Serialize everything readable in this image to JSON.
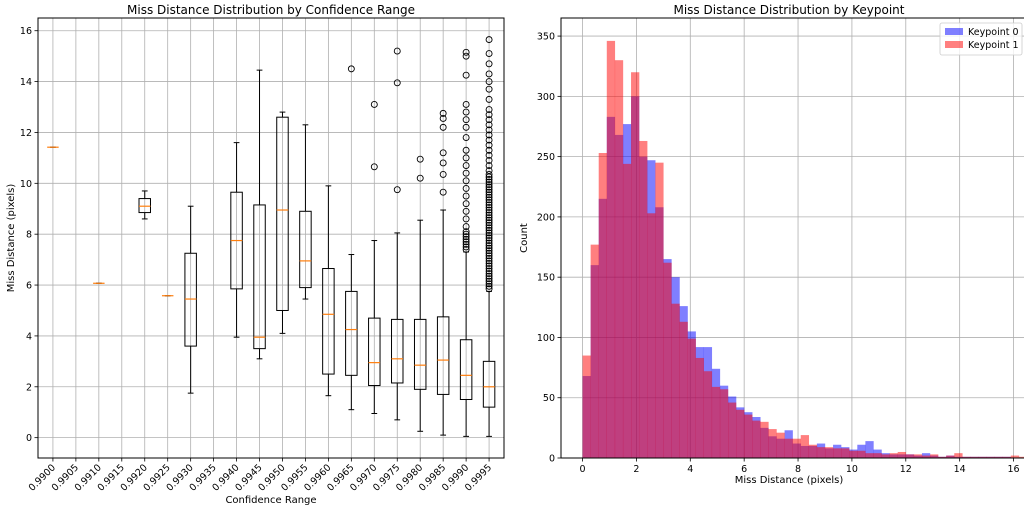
{
  "chart_data": [
    {
      "type": "box",
      "title": "Miss Distance Distribution by Confidence Range",
      "xlabel": "Confidence Range",
      "ylabel": "Miss Distance (pixels)",
      "ylim": [
        -0.8,
        16.5
      ],
      "yticks": [
        0,
        2,
        4,
        6,
        8,
        10,
        12,
        14,
        16
      ],
      "grid": true,
      "categories": [
        "0.9900",
        "0.9905",
        "0.9910",
        "0.9915",
        "0.9920",
        "0.9925",
        "0.9930",
        "0.9935",
        "0.9940",
        "0.9945",
        "0.9950",
        "0.9955",
        "0.9960",
        "0.9965",
        "0.9970",
        "0.9975",
        "0.9980",
        "0.9985",
        "0.9990",
        "0.9995"
      ],
      "boxes": [
        {
          "category": "0.9900",
          "min": 11.42,
          "q1": 11.42,
          "median": 11.42,
          "q3": 11.42,
          "max": 11.42,
          "outliers": []
        },
        {
          "category": "0.9905",
          "empty": true
        },
        {
          "category": "0.9910",
          "min": 6.07,
          "q1": 6.07,
          "median": 6.07,
          "q3": 6.07,
          "max": 6.07,
          "outliers": []
        },
        {
          "category": "0.9915",
          "empty": true
        },
        {
          "category": "0.9920",
          "min": 8.6,
          "q1": 8.85,
          "median": 9.1,
          "q3": 9.4,
          "max": 9.7,
          "outliers": []
        },
        {
          "category": "0.9925",
          "min": 5.58,
          "q1": 5.58,
          "median": 5.58,
          "q3": 5.58,
          "max": 5.58,
          "outliers": []
        },
        {
          "category": "0.9930",
          "min": 1.75,
          "q1": 3.6,
          "median": 5.45,
          "q3": 7.25,
          "max": 9.1,
          "outliers": []
        },
        {
          "category": "0.9935",
          "empty": true
        },
        {
          "category": "0.9940",
          "min": 3.95,
          "q1": 5.85,
          "median": 7.75,
          "q3": 9.65,
          "max": 11.6,
          "outliers": []
        },
        {
          "category": "0.9945",
          "min": 3.1,
          "q1": 3.5,
          "median": 3.95,
          "q3": 9.15,
          "max": 14.45,
          "outliers": []
        },
        {
          "category": "0.9950",
          "min": 4.1,
          "q1": 5.0,
          "median": 8.95,
          "q3": 12.6,
          "max": 12.8,
          "outliers": []
        },
        {
          "category": "0.9955",
          "min": 5.45,
          "q1": 5.9,
          "median": 6.95,
          "q3": 8.9,
          "max": 12.3,
          "outliers": []
        },
        {
          "category": "0.9960",
          "min": 1.65,
          "q1": 2.5,
          "median": 4.85,
          "q3": 6.65,
          "max": 9.9,
          "outliers": []
        },
        {
          "category": "0.9965",
          "min": 1.1,
          "q1": 2.45,
          "median": 4.25,
          "q3": 5.75,
          "max": 7.2,
          "outliers": [
            14.5
          ]
        },
        {
          "category": "0.9970",
          "min": 0.95,
          "q1": 2.05,
          "median": 2.95,
          "q3": 4.7,
          "max": 7.75,
          "outliers": [
            10.65,
            13.1
          ]
        },
        {
          "category": "0.9975",
          "min": 0.7,
          "q1": 2.15,
          "median": 3.1,
          "q3": 4.65,
          "max": 8.05,
          "outliers": [
            9.75,
            13.95,
            15.2
          ]
        },
        {
          "category": "0.9980",
          "min": 0.25,
          "q1": 1.9,
          "median": 2.85,
          "q3": 4.65,
          "max": 8.55,
          "outliers": [
            10.2,
            10.95
          ]
        },
        {
          "category": "0.9985",
          "min": 0.1,
          "q1": 1.7,
          "median": 3.05,
          "q3": 4.75,
          "max": 8.95,
          "outliers": [
            9.65,
            10.35,
            10.8,
            11.2,
            12.2,
            12.55,
            12.75
          ]
        },
        {
          "category": "0.9990",
          "min": 0.05,
          "q1": 1.5,
          "median": 2.45,
          "q3": 3.85,
          "max": 7.3,
          "outliers": [
            7.4,
            7.5,
            7.6,
            7.7,
            7.8,
            7.9,
            8.0,
            8.1,
            8.3,
            8.6,
            8.9,
            9.2,
            9.5,
            9.8,
            10.1,
            10.4,
            10.7,
            11.0,
            11.3,
            11.8,
            12.2,
            12.5,
            12.8,
            13.1,
            14.25,
            15.0,
            15.15
          ]
        },
        {
          "category": "0.9995",
          "min": 0.05,
          "q1": 1.2,
          "median": 2.0,
          "q3": 3.0,
          "max": 5.75,
          "outliers": [
            5.85,
            5.95,
            6.05,
            6.15,
            6.25,
            6.35,
            6.45,
            6.55,
            6.65,
            6.75,
            6.85,
            6.95,
            7.05,
            7.15,
            7.25,
            7.35,
            7.45,
            7.55,
            7.65,
            7.75,
            7.85,
            7.95,
            8.05,
            8.15,
            8.25,
            8.35,
            8.45,
            8.55,
            8.65,
            8.75,
            8.85,
            8.95,
            9.05,
            9.15,
            9.25,
            9.35,
            9.45,
            9.55,
            9.65,
            9.75,
            9.85,
            9.95,
            10.05,
            10.15,
            10.25,
            10.35,
            10.5,
            10.7,
            10.9,
            11.1,
            11.3,
            11.5,
            11.7,
            11.9,
            12.1,
            12.3,
            12.5,
            12.7,
            12.9,
            13.3,
            13.7,
            14.0,
            14.3,
            14.7,
            15.1,
            15.65
          ]
        }
      ]
    },
    {
      "type": "histogram",
      "title": "Miss Distance Distribution by Keypoint",
      "xlabel": "Miss Distance (pixels)",
      "ylabel": "Count",
      "xlim": [
        -0.8,
        16.5
      ],
      "ylim": [
        0,
        365
      ],
      "xticks": [
        0,
        2,
        4,
        6,
        8,
        10,
        12,
        14,
        16
      ],
      "yticks": [
        0,
        50,
        100,
        150,
        200,
        250,
        300,
        350
      ],
      "grid": true,
      "legend_position": "top-right",
      "bin_start": 0.0,
      "bin_width": 0.3,
      "series": [
        {
          "name": "Keypoint 0",
          "color": "#0000ff",
          "opacity": 0.5,
          "counts": [
            68,
            160,
            215,
            283,
            268,
            277,
            300,
            250,
            247,
            208,
            165,
            150,
            126,
            105,
            92,
            92,
            74,
            60,
            51,
            42,
            38,
            34,
            25,
            18,
            16,
            23,
            12,
            10,
            10,
            12,
            8,
            11,
            9,
            7,
            11,
            14,
            7,
            4,
            3,
            3,
            3,
            2,
            4,
            2,
            1,
            2,
            1,
            1,
            1,
            1,
            1,
            1,
            1,
            0
          ]
        },
        {
          "name": "Keypoint 1",
          "color": "#ff0000",
          "opacity": 0.5,
          "counts": [
            85,
            177,
            253,
            346,
            330,
            244,
            320,
            263,
            203,
            245,
            162,
            128,
            113,
            99,
            83,
            72,
            59,
            57,
            46,
            40,
            36,
            31,
            30,
            24,
            21,
            16,
            16,
            19,
            11,
            9,
            9,
            8,
            8,
            6,
            6,
            4,
            4,
            3,
            4,
            5,
            3,
            3,
            2,
            3,
            1,
            2,
            4,
            1,
            1,
            1,
            1,
            1,
            1,
            2,
            1
          ]
        }
      ]
    }
  ]
}
